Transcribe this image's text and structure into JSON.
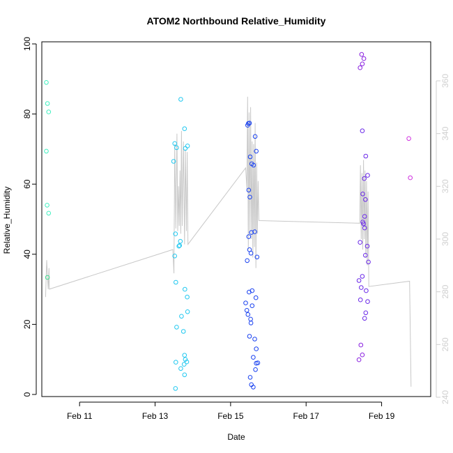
{
  "chart_data": {
    "type": "scatter",
    "title": "ATOM2 Northbound Relative_Humidity",
    "xlabel": "Date",
    "ylabel": "Relative_Humidity",
    "xlim": [
      10.0,
      20.3
    ],
    "ylim": [
      0,
      100
    ],
    "x_ticks": [
      {
        "value": 11,
        "label": "Feb 11"
      },
      {
        "value": 13,
        "label": "Feb 13"
      },
      {
        "value": 15,
        "label": "Feb 15"
      },
      {
        "value": 17,
        "label": "Feb 17"
      },
      {
        "value": 19,
        "label": "Feb 19"
      }
    ],
    "y_ticks": [
      0,
      20,
      40,
      60,
      80,
      100
    ],
    "right_axis": {
      "ylim": [
        240,
        360
      ],
      "ticks": [
        240,
        260,
        280,
        300,
        320,
        340,
        360
      ],
      "color": "#cfcfcf"
    },
    "points": [
      {
        "x": 10.12,
        "y": 89.0,
        "color": "#40f0c0"
      },
      {
        "x": 10.15,
        "y": 83.0,
        "color": "#40f0c0"
      },
      {
        "x": 10.18,
        "y": 80.6,
        "color": "#40f0c0"
      },
      {
        "x": 10.12,
        "y": 69.4,
        "color": "#40f0c0"
      },
      {
        "x": 10.14,
        "y": 54.0,
        "color": "#40f0c0"
      },
      {
        "x": 10.18,
        "y": 51.7,
        "color": "#40f0c0"
      },
      {
        "x": 10.15,
        "y": 33.4,
        "color": "#40e090"
      },
      {
        "x": 13.68,
        "y": 84.2,
        "color": "#20c8f0"
      },
      {
        "x": 13.78,
        "y": 75.8,
        "color": "#20c8f0"
      },
      {
        "x": 13.52,
        "y": 71.6,
        "color": "#20c8f0"
      },
      {
        "x": 13.57,
        "y": 70.4,
        "color": "#20c8f0"
      },
      {
        "x": 13.8,
        "y": 70.2,
        "color": "#20c8f0"
      },
      {
        "x": 13.86,
        "y": 70.9,
        "color": "#20c8f0"
      },
      {
        "x": 13.49,
        "y": 66.5,
        "color": "#20c8f0"
      },
      {
        "x": 13.54,
        "y": 45.8,
        "color": "#20c8f0"
      },
      {
        "x": 13.67,
        "y": 43.7,
        "color": "#20c8f0"
      },
      {
        "x": 13.65,
        "y": 42.5,
        "color": "#20c8f0"
      },
      {
        "x": 13.63,
        "y": 42.3,
        "color": "#20c8f0"
      },
      {
        "x": 13.52,
        "y": 39.5,
        "color": "#20c8f0"
      },
      {
        "x": 13.55,
        "y": 32.0,
        "color": "#20c8f0"
      },
      {
        "x": 13.79,
        "y": 30.0,
        "color": "#20c8f0"
      },
      {
        "x": 13.85,
        "y": 27.8,
        "color": "#20c8f0"
      },
      {
        "x": 13.86,
        "y": 23.6,
        "color": "#20c8f0"
      },
      {
        "x": 13.7,
        "y": 22.3,
        "color": "#20c8f0"
      },
      {
        "x": 13.57,
        "y": 19.2,
        "color": "#20c8f0"
      },
      {
        "x": 13.75,
        "y": 18.0,
        "color": "#20c8f0"
      },
      {
        "x": 13.78,
        "y": 11.2,
        "color": "#20c8f0"
      },
      {
        "x": 13.8,
        "y": 10.0,
        "color": "#20c8f0"
      },
      {
        "x": 13.55,
        "y": 9.2,
        "color": "#20c8f0"
      },
      {
        "x": 13.84,
        "y": 9.3,
        "color": "#20c8f0"
      },
      {
        "x": 13.77,
        "y": 8.6,
        "color": "#20c8f0"
      },
      {
        "x": 13.68,
        "y": 7.4,
        "color": "#20c8f0"
      },
      {
        "x": 13.78,
        "y": 5.6,
        "color": "#20c8f0"
      },
      {
        "x": 13.54,
        "y": 1.7,
        "color": "#20c8f0"
      },
      {
        "x": 15.45,
        "y": 76.8,
        "color": "#1840f0"
      },
      {
        "x": 15.47,
        "y": 77.3,
        "color": "#1840f0"
      },
      {
        "x": 15.5,
        "y": 77.4,
        "color": "#1840f0"
      },
      {
        "x": 15.65,
        "y": 73.6,
        "color": "#1840f0"
      },
      {
        "x": 15.68,
        "y": 69.4,
        "color": "#1840f0"
      },
      {
        "x": 15.52,
        "y": 67.8,
        "color": "#1840f0"
      },
      {
        "x": 15.56,
        "y": 65.8,
        "color": "#1840f0"
      },
      {
        "x": 15.61,
        "y": 65.4,
        "color": "#1840f0"
      },
      {
        "x": 15.48,
        "y": 58.3,
        "color": "#1840f0"
      },
      {
        "x": 15.51,
        "y": 56.3,
        "color": "#1840f0"
      },
      {
        "x": 15.55,
        "y": 46.2,
        "color": "#1840f0"
      },
      {
        "x": 15.64,
        "y": 46.4,
        "color": "#1840f0"
      },
      {
        "x": 15.48,
        "y": 45.0,
        "color": "#1840f0"
      },
      {
        "x": 15.5,
        "y": 41.3,
        "color": "#1840f0"
      },
      {
        "x": 15.54,
        "y": 40.3,
        "color": "#1840f0"
      },
      {
        "x": 15.7,
        "y": 39.2,
        "color": "#1840f0"
      },
      {
        "x": 15.44,
        "y": 38.2,
        "color": "#1840f0"
      },
      {
        "x": 15.57,
        "y": 29.6,
        "color": "#1840f0"
      },
      {
        "x": 15.49,
        "y": 29.2,
        "color": "#1840f0"
      },
      {
        "x": 15.67,
        "y": 27.6,
        "color": "#1840f0"
      },
      {
        "x": 15.4,
        "y": 26.1,
        "color": "#1840f0"
      },
      {
        "x": 15.57,
        "y": 25.3,
        "color": "#1840f0"
      },
      {
        "x": 15.43,
        "y": 24.0,
        "color": "#1840f0"
      },
      {
        "x": 15.46,
        "y": 22.8,
        "color": "#1840f0"
      },
      {
        "x": 15.53,
        "y": 21.5,
        "color": "#1840f0"
      },
      {
        "x": 15.54,
        "y": 20.4,
        "color": "#1840f0"
      },
      {
        "x": 15.5,
        "y": 16.6,
        "color": "#1840f0"
      },
      {
        "x": 15.64,
        "y": 15.8,
        "color": "#1840f0"
      },
      {
        "x": 15.68,
        "y": 13.0,
        "color": "#1840f0"
      },
      {
        "x": 15.6,
        "y": 10.6,
        "color": "#1840f0"
      },
      {
        "x": 15.68,
        "y": 8.9,
        "color": "#1840f0"
      },
      {
        "x": 15.72,
        "y": 9.0,
        "color": "#1840f0"
      },
      {
        "x": 15.66,
        "y": 7.1,
        "color": "#1840f0"
      },
      {
        "x": 15.52,
        "y": 4.9,
        "color": "#1840f0"
      },
      {
        "x": 15.55,
        "y": 2.8,
        "color": "#1840f0"
      },
      {
        "x": 15.6,
        "y": 2.1,
        "color": "#1840f0"
      },
      {
        "x": 18.47,
        "y": 97.0,
        "color": "#8a20e0"
      },
      {
        "x": 18.53,
        "y": 95.8,
        "color": "#8a20e0"
      },
      {
        "x": 18.49,
        "y": 94.3,
        "color": "#8a20e0"
      },
      {
        "x": 18.43,
        "y": 93.2,
        "color": "#8a20e0"
      },
      {
        "x": 18.49,
        "y": 75.2,
        "color": "#6a28e8"
      },
      {
        "x": 18.58,
        "y": 68.0,
        "color": "#6a28e8"
      },
      {
        "x": 18.63,
        "y": 62.5,
        "color": "#6a28e8"
      },
      {
        "x": 18.54,
        "y": 61.6,
        "color": "#6a28e8"
      },
      {
        "x": 18.5,
        "y": 57.2,
        "color": "#6a28e8"
      },
      {
        "x": 18.57,
        "y": 55.6,
        "color": "#6a28e8"
      },
      {
        "x": 18.55,
        "y": 50.8,
        "color": "#6a28e8"
      },
      {
        "x": 18.5,
        "y": 49.2,
        "color": "#6a28e8"
      },
      {
        "x": 18.52,
        "y": 48.7,
        "color": "#6a28e8"
      },
      {
        "x": 18.55,
        "y": 47.5,
        "color": "#6a28e8"
      },
      {
        "x": 18.43,
        "y": 43.4,
        "color": "#6a28e8"
      },
      {
        "x": 18.62,
        "y": 42.3,
        "color": "#6a28e8"
      },
      {
        "x": 18.57,
        "y": 39.7,
        "color": "#6a28e8"
      },
      {
        "x": 18.65,
        "y": 37.8,
        "color": "#6a28e8"
      },
      {
        "x": 18.49,
        "y": 33.7,
        "color": "#6a28e8"
      },
      {
        "x": 18.4,
        "y": 32.5,
        "color": "#6a28e8"
      },
      {
        "x": 18.46,
        "y": 30.5,
        "color": "#6a28e8"
      },
      {
        "x": 18.59,
        "y": 29.6,
        "color": "#6a28e8"
      },
      {
        "x": 18.44,
        "y": 27.0,
        "color": "#6a28e8"
      },
      {
        "x": 18.63,
        "y": 26.5,
        "color": "#6a28e8"
      },
      {
        "x": 18.58,
        "y": 23.3,
        "color": "#6a28e8"
      },
      {
        "x": 18.55,
        "y": 21.7,
        "color": "#6a28e8"
      },
      {
        "x": 18.45,
        "y": 14.1,
        "color": "#8a20e0"
      },
      {
        "x": 18.49,
        "y": 11.3,
        "color": "#8a20e0"
      },
      {
        "x": 18.4,
        "y": 9.9,
        "color": "#8a20e0"
      },
      {
        "x": 19.72,
        "y": 73.0,
        "color": "#d030e0"
      },
      {
        "x": 19.76,
        "y": 61.8,
        "color": "#d030e0"
      }
    ],
    "line_series": {
      "name": "right-axis series",
      "color": "#c8c8c8",
      "axis": "right",
      "x": [
        10.1,
        10.13,
        10.15,
        10.17,
        10.19,
        10.2,
        13.47,
        13.5,
        13.52,
        13.55,
        13.58,
        13.6,
        13.62,
        13.64,
        13.66,
        13.68,
        13.7,
        13.72,
        13.75,
        13.78,
        13.8,
        13.83,
        13.85,
        13.87,
        15.4,
        15.43,
        15.45,
        15.47,
        15.49,
        15.51,
        15.53,
        15.55,
        15.57,
        15.59,
        15.61,
        15.63,
        15.65,
        15.67,
        15.69,
        15.71,
        15.73,
        15.75,
        18.42,
        18.44,
        18.46,
        18.48,
        18.5,
        18.52,
        18.54,
        18.56,
        18.58,
        18.6,
        18.62,
        18.64,
        18.66,
        19.74,
        19.78
      ],
      "y": [
        278,
        292,
        286,
        281,
        289,
        281,
        296,
        287,
        336,
        304,
        340,
        303,
        320,
        305,
        326,
        302,
        341,
        305,
        337,
        298,
        334,
        303,
        333,
        298,
        327,
        319,
        354,
        296,
        348,
        302,
        350,
        300,
        337,
        293,
        336,
        297,
        344,
        289,
        329,
        302,
        322,
        307,
        306,
        328,
        300,
        325,
        296,
        330,
        300,
        326,
        293,
        322,
        290,
        318,
        282,
        284,
        244
      ]
    }
  }
}
